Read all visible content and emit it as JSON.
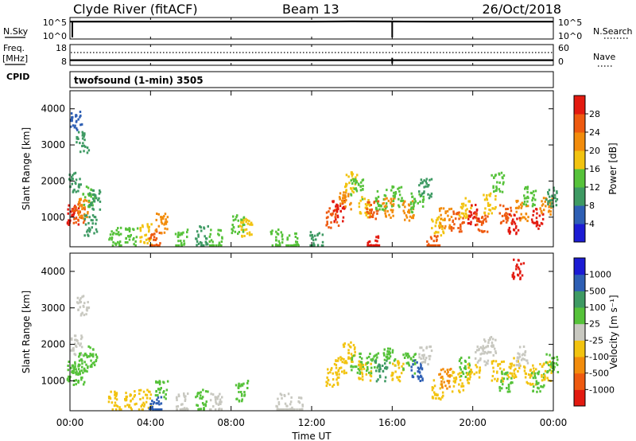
{
  "header": {
    "station": "Clyde River (fitACF)",
    "beam": "Beam 13",
    "date": "26/Oct/2018"
  },
  "noise_panel": {
    "left_label": "N.Sky",
    "left_ticks": [
      "10^5",
      "10^0"
    ],
    "right_ticks": [
      "10^5",
      "10^0"
    ],
    "right_label": "N.Search"
  },
  "freq_panel": {
    "left_label_1": "Freq.",
    "left_label_2": "[MHz]",
    "left_ticks": [
      "18",
      "8"
    ],
    "right_ticks": [
      "60",
      "0"
    ],
    "right_label": "Nave",
    "cpid_label": "CPID"
  },
  "mode_text": "twofsound (1-min) 3505",
  "x_axis": {
    "title": "Time UT",
    "ticks": [
      "00:00",
      "04:00",
      "08:00",
      "12:00",
      "16:00",
      "20:00",
      "00:00"
    ]
  },
  "colors": {
    "power": [
      "#1c1cd4",
      "#2e5fb4",
      "#3e9a63",
      "#56c23a",
      "#f2c310",
      "#f28c0c",
      "#ee5a10",
      "#e31a10"
    ],
    "velocity": [
      "#e31a10",
      "#ee5a10",
      "#f28c0c",
      "#f2c310",
      "#c8c8c0",
      "#56c23a",
      "#3e9a63",
      "#2e5fb4",
      "#1c1cd4"
    ]
  },
  "chart_data": [
    {
      "type": "line",
      "panel": "noise",
      "x_unit": "hours UT",
      "x": [
        0,
        2,
        4,
        6,
        8,
        10,
        12,
        14,
        16,
        18,
        20,
        22,
        24
      ],
      "series": [
        {
          "name": "N.Sky",
          "values": [
            20000,
            21000,
            20500,
            20000,
            20800,
            20200,
            20000,
            23000,
            22000,
            20500,
            20000,
            20500,
            20000
          ]
        }
      ]
    },
    {
      "type": "line",
      "panel": "freq",
      "x_unit": "hours UT",
      "x": [
        0,
        4,
        8,
        12,
        16,
        20,
        24
      ],
      "series": [
        {
          "name": "Freq. [MHz]",
          "values": [
            10,
            10,
            10,
            10,
            10,
            10,
            10
          ]
        }
      ]
    },
    {
      "type": "heatmap",
      "panel": "power",
      "x_unit": "hours UT",
      "ylabel": "Slant Range [km]",
      "yticks": [
        1000,
        2000,
        3000,
        4000
      ],
      "xlim": [
        0,
        24
      ],
      "ylim": [
        180,
        4500
      ],
      "colorbar_title": "Power [dB]",
      "colorbar_ticks": [
        "4",
        "8",
        "12",
        "16",
        "20",
        "24",
        "28"
      ],
      "colorbar_range": [
        0,
        32
      ],
      "cells": [
        [
          0.1,
          1100,
          28
        ],
        [
          0.4,
          1150,
          26
        ],
        [
          0.7,
          1250,
          20
        ],
        [
          0.9,
          1600,
          12
        ],
        [
          1.2,
          1500,
          9
        ],
        [
          0.2,
          2000,
          8
        ],
        [
          0.6,
          3100,
          8
        ],
        [
          0.3,
          3700,
          4
        ],
        [
          1.0,
          800,
          10
        ],
        [
          2.2,
          450,
          12
        ],
        [
          3.0,
          500,
          14
        ],
        [
          3.7,
          550,
          18
        ],
        [
          4.2,
          350,
          24
        ],
        [
          4.5,
          850,
          20
        ],
        [
          5.5,
          400,
          12
        ],
        [
          6.5,
          500,
          10
        ],
        [
          7.2,
          400,
          14
        ],
        [
          8.3,
          800,
          12
        ],
        [
          8.7,
          700,
          16
        ],
        [
          10.2,
          400,
          12
        ],
        [
          11.0,
          300,
          14
        ],
        [
          12.2,
          350,
          10
        ],
        [
          13.0,
          1000,
          26
        ],
        [
          13.3,
          1200,
          28
        ],
        [
          13.6,
          1500,
          22
        ],
        [
          13.9,
          2000,
          16
        ],
        [
          14.2,
          1800,
          12
        ],
        [
          14.6,
          1300,
          18
        ],
        [
          15.0,
          1200,
          24
        ],
        [
          15.4,
          1500,
          14
        ],
        [
          15.8,
          1300,
          20
        ],
        [
          16.2,
          1600,
          12
        ],
        [
          16.8,
          1200,
          22
        ],
        [
          17.2,
          1400,
          12
        ],
        [
          17.6,
          1800,
          8
        ],
        [
          18.2,
          800,
          18
        ],
        [
          18.6,
          1000,
          22
        ],
        [
          19.2,
          900,
          26
        ],
        [
          19.6,
          1300,
          16
        ],
        [
          20.0,
          1100,
          28
        ],
        [
          20.4,
          900,
          24
        ],
        [
          20.8,
          1400,
          18
        ],
        [
          21.2,
          2000,
          12
        ],
        [
          21.6,
          1100,
          26
        ],
        [
          22.0,
          850,
          28
        ],
        [
          22.4,
          1200,
          22
        ],
        [
          22.8,
          1600,
          14
        ],
        [
          23.2,
          1000,
          28
        ],
        [
          23.6,
          1300,
          20
        ],
        [
          23.9,
          1600,
          10
        ],
        [
          15.0,
          250,
          28
        ],
        [
          18.0,
          250,
          26
        ]
      ]
    },
    {
      "type": "heatmap",
      "panel": "velocity",
      "x_unit": "hours UT",
      "ylabel": "Slant Range [km]",
      "yticks": [
        1000,
        2000,
        3000,
        4000
      ],
      "xlim": [
        0,
        24
      ],
      "ylim": [
        180,
        4500
      ],
      "colorbar_title": "Velocity [m s⁻¹]",
      "colorbar_ticks": [
        "-1000",
        "-500",
        "-100",
        "-25",
        "25",
        "100",
        "500",
        "1000"
      ],
      "colorbar_range": [
        -1250,
        1250
      ],
      "cells": [
        [
          0.1,
          1300,
          200
        ],
        [
          0.4,
          1200,
          300
        ],
        [
          0.7,
          1500,
          200
        ],
        [
          1.0,
          1700,
          300
        ],
        [
          0.3,
          2000,
          10
        ],
        [
          0.6,
          3100,
          10
        ],
        [
          2.2,
          450,
          -200
        ],
        [
          3.0,
          500,
          -300
        ],
        [
          3.7,
          500,
          -150
        ],
        [
          4.2,
          300,
          700
        ],
        [
          4.5,
          800,
          150
        ],
        [
          5.5,
          400,
          60
        ],
        [
          6.5,
          500,
          150
        ],
        [
          7.2,
          400,
          -50
        ],
        [
          8.5,
          750,
          150
        ],
        [
          10.5,
          400,
          60
        ],
        [
          11.2,
          300,
          -30
        ],
        [
          13.0,
          1100,
          -300
        ],
        [
          13.4,
          1400,
          -400
        ],
        [
          13.8,
          1800,
          -200
        ],
        [
          14.2,
          1500,
          150
        ],
        [
          14.6,
          1300,
          -200
        ],
        [
          15.0,
          1500,
          300
        ],
        [
          15.4,
          1300,
          600
        ],
        [
          15.8,
          1700,
          150
        ],
        [
          16.2,
          1300,
          -200
        ],
        [
          16.8,
          1500,
          200
        ],
        [
          17.2,
          1300,
          900
        ],
        [
          17.6,
          1700,
          10
        ],
        [
          18.2,
          800,
          -300
        ],
        [
          18.6,
          1100,
          -500
        ],
        [
          19.2,
          1000,
          -200
        ],
        [
          19.6,
          1400,
          150
        ],
        [
          20.0,
          1200,
          -300
        ],
        [
          20.4,
          1700,
          10
        ],
        [
          20.8,
          2000,
          -10
        ],
        [
          21.2,
          1300,
          -200
        ],
        [
          21.6,
          1000,
          300
        ],
        [
          22.0,
          1400,
          -400
        ],
        [
          22.4,
          1700,
          10
        ],
        [
          22.8,
          1200,
          -150
        ],
        [
          23.2,
          1000,
          200
        ],
        [
          23.6,
          1300,
          -300
        ],
        [
          23.9,
          1500,
          150
        ],
        [
          22.2,
          4100,
          -1000
        ]
      ]
    }
  ]
}
